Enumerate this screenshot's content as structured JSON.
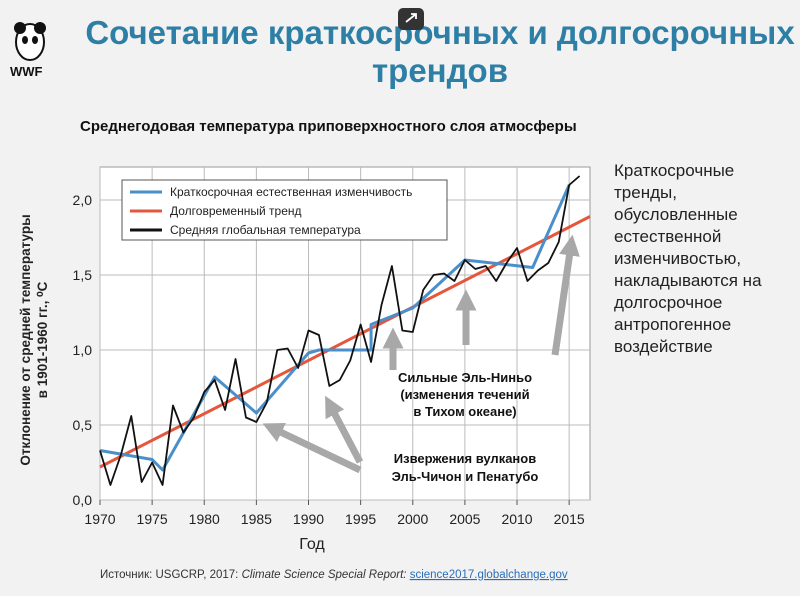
{
  "slide": {
    "title": "Сочетание краткосрочных и долгосрочных трендов",
    "logo": "WWF",
    "side_text": "Краткосрочные тренды, обусловленные естественной изменчивостью, накладываются на долгосрочное антропогенное воздействие",
    "source": {
      "prefix": "Источник: USGCRP, 2017:",
      "report": "Climate Science Special Report:",
      "link": "science2017.globalchange.gov"
    }
  },
  "chart_data": {
    "type": "line",
    "title": "Среднегодовая температура приповерхностного слоя атмосферы",
    "x_label": "Год",
    "y_label": [
      "Отклонение от средней температуры",
      "в 1901-1960 гг., ⁰С"
    ],
    "xlim": [
      1970,
      2017
    ],
    "ylim": [
      0,
      2.2
    ],
    "xticks": [
      1970,
      1975,
      1980,
      1985,
      1990,
      1995,
      2000,
      2005,
      2010,
      2015
    ],
    "yticks": [
      {
        "value": 0,
        "label": "0,0"
      },
      {
        "value": 0.5,
        "label": "0,5"
      },
      {
        "value": 1,
        "label": "1,0"
      },
      {
        "value": 1.5,
        "label": "1,5"
      },
      {
        "value": 2,
        "label": "2,0"
      }
    ],
    "grid": true,
    "legend": "upper-left",
    "series": [
      {
        "name": "Краткосрочная естественная изменчивость",
        "color": "#4a8fc9",
        "x": [
          1970,
          1975,
          1976,
          1981,
          1985,
          1990,
          1991,
          1996,
          1996,
          2000,
          2005,
          2011.5,
          2015
        ],
        "values": [
          0.33,
          0.27,
          0.2,
          0.82,
          0.58,
          0.98,
          1.0,
          1.0,
          1.17,
          1.28,
          1.6,
          1.55,
          2.1
        ]
      },
      {
        "name": "Долговременный тренд",
        "color": "#e5573c",
        "x": [
          1970,
          2017
        ],
        "values": [
          0.22,
          1.89
        ]
      },
      {
        "name": "Средняя глобальная температура",
        "color": "#111111",
        "x": [
          1970,
          1971,
          1972,
          1973,
          1974,
          1975,
          1976,
          1977,
          1978,
          1979,
          1980,
          1981,
          1982,
          1983,
          1984,
          1985,
          1986,
          1987,
          1988,
          1989,
          1990,
          1991,
          1992,
          1993,
          1994,
          1995,
          1996,
          1997,
          1998,
          1999,
          2000,
          2001,
          2002,
          2003,
          2004,
          2005,
          2006,
          2007,
          2008,
          2009,
          2010,
          2011,
          2012,
          2013,
          2014,
          2015,
          2016
        ],
        "values": [
          0.33,
          0.1,
          0.3,
          0.56,
          0.12,
          0.25,
          0.1,
          0.63,
          0.45,
          0.55,
          0.72,
          0.8,
          0.6,
          0.94,
          0.55,
          0.52,
          0.65,
          1.0,
          1.01,
          0.88,
          1.13,
          1.1,
          0.76,
          0.8,
          0.93,
          1.17,
          0.92,
          1.3,
          1.56,
          1.13,
          1.12,
          1.4,
          1.5,
          1.51,
          1.46,
          1.6,
          1.54,
          1.56,
          1.46,
          1.58,
          1.68,
          1.46,
          1.53,
          1.58,
          1.72,
          2.1,
          2.16
        ]
      }
    ],
    "annotations": [
      "Сильные Эль-Ниньо",
      "(изменения течений",
      "в Тихом океане)",
      "Извержения вулканов",
      "Эль-Чичон и Пенатубо"
    ]
  }
}
